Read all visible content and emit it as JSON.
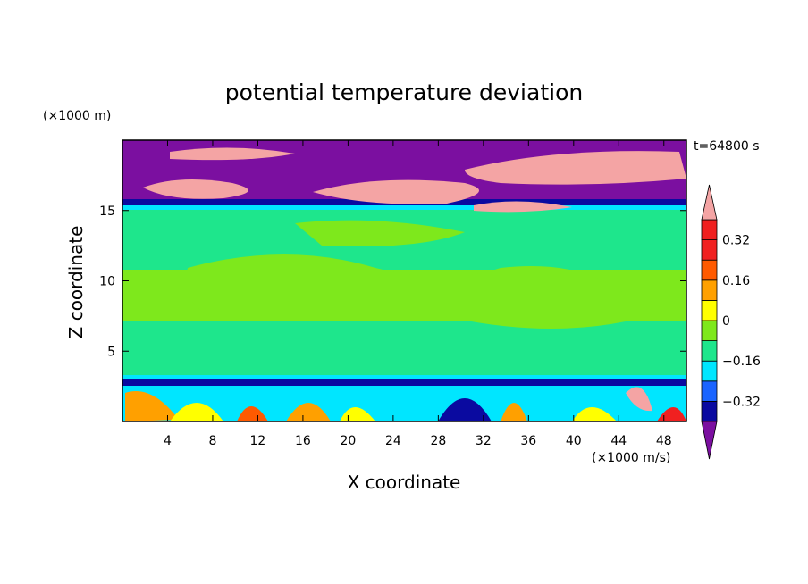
{
  "chart_data": {
    "type": "heatmap",
    "title": "potential temperature deviation",
    "xlabel": "X coordinate",
    "ylabel": "Z coordinate",
    "x_unit": "(×1000 m/s)",
    "y_unit": "(×1000 m)",
    "time_label": "t=64800 s",
    "xlim": [
      0,
      50
    ],
    "ylim": [
      0,
      20
    ],
    "x_ticks": [
      4,
      8,
      12,
      16,
      20,
      24,
      28,
      32,
      36,
      40,
      44,
      48
    ],
    "x_tick_labels": [
      "4",
      "8",
      "12",
      "16",
      "20",
      "24",
      "28",
      "32",
      "36",
      "40",
      "44",
      "48"
    ],
    "y_ticks": [
      5,
      10,
      15
    ],
    "y_tick_labels": [
      "5",
      "10",
      "15"
    ],
    "colorbar": {
      "colors": [
        "#7b0fa0",
        "#0a0aa0",
        "#1a64ff",
        "#00e6ff",
        "#1ee68c",
        "#7ee81c",
        "#ffff00",
        "#ffa000",
        "#ff5a00",
        "#f02020",
        "#f4a4a4"
      ],
      "levels": [
        -0.4,
        -0.32,
        -0.24,
        -0.16,
        -0.08,
        0,
        0.08,
        0.16,
        0.24,
        0.32,
        0.4
      ],
      "tick_values": [
        -0.32,
        -0.16,
        0,
        0.16,
        0.32
      ],
      "tick_labels": [
        "−0.32",
        "−0.16",
        "0",
        "0.16",
        "0.32"
      ]
    }
  }
}
